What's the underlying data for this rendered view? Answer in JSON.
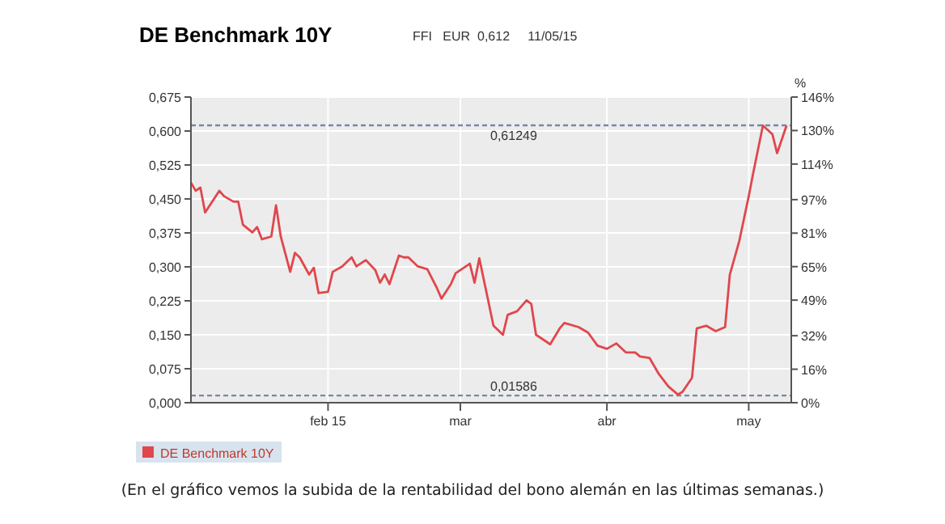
{
  "chart_data": {
    "type": "line",
    "title": "DE Benchmark 10Y",
    "subtitle": "FFI   EUR  0,612     11/05/15",
    "x": [
      "2015-01-03",
      "2015-01-04",
      "2015-01-05",
      "2015-01-06",
      "2015-01-09",
      "2015-01-10",
      "2015-01-12",
      "2015-01-13",
      "2015-01-14",
      "2015-01-16",
      "2015-01-17",
      "2015-01-18",
      "2015-01-20",
      "2015-01-21",
      "2015-01-22",
      "2015-01-24",
      "2015-01-25",
      "2015-01-26",
      "2015-01-28",
      "2015-01-29",
      "2015-01-30",
      "2015-02-01",
      "2015-02-02",
      "2015-02-04",
      "2015-02-06",
      "2015-02-07",
      "2015-02-09",
      "2015-02-11",
      "2015-02-12",
      "2015-02-13",
      "2015-02-14",
      "2015-02-16",
      "2015-02-17",
      "2015-02-18",
      "2015-02-20",
      "2015-02-22",
      "2015-02-24",
      "2015-02-25",
      "2015-02-27",
      "2015-02-28",
      "2015-03-03",
      "2015-03-04",
      "2015-03-05",
      "2015-03-08",
      "2015-03-10",
      "2015-03-11",
      "2015-03-13",
      "2015-03-15",
      "2015-03-16",
      "2015-03-17",
      "2015-03-20",
      "2015-03-22",
      "2015-03-23",
      "2015-03-26",
      "2015-03-28",
      "2015-03-30",
      "2015-04-01",
      "2015-04-03",
      "2015-04-05",
      "2015-04-07",
      "2015-04-08",
      "2015-04-10",
      "2015-04-12",
      "2015-04-14",
      "2015-04-16",
      "2015-04-17",
      "2015-04-19",
      "2015-04-20",
      "2015-04-22",
      "2015-04-24",
      "2015-04-26",
      "2015-04-27",
      "2015-04-29",
      "2015-05-01",
      "2015-05-02",
      "2015-05-04",
      "2015-05-06",
      "2015-05-07",
      "2015-05-09"
    ],
    "series": [
      {
        "name": "DE Benchmark 10Y",
        "color": "#e0474c",
        "values": [
          0.486,
          0.468,
          0.475,
          0.42,
          0.468,
          0.456,
          0.444,
          0.444,
          0.393,
          0.376,
          0.388,
          0.361,
          0.367,
          0.436,
          0.367,
          0.289,
          0.331,
          0.321,
          0.283,
          0.298,
          0.242,
          0.245,
          0.289,
          0.301,
          0.321,
          0.301,
          0.315,
          0.293,
          0.265,
          0.283,
          0.262,
          0.325,
          0.321,
          0.321,
          0.301,
          0.295,
          0.254,
          0.23,
          0.262,
          0.286,
          0.307,
          0.265,
          0.319,
          0.17,
          0.15,
          0.194,
          0.202,
          0.226,
          0.218,
          0.15,
          0.129,
          0.164,
          0.176,
          0.167,
          0.155,
          0.126,
          0.119,
          0.131,
          0.111,
          0.111,
          0.102,
          0.099,
          0.063,
          0.036,
          0.018,
          0.024,
          0.055,
          0.164,
          0.17,
          0.158,
          0.167,
          0.283,
          0.357,
          0.456,
          0.51,
          0.612,
          0.593,
          0.551,
          0.612
        ]
      }
    ],
    "xlim": [
      "2015-01-03",
      "2015-05-10"
    ],
    "xticks": [
      {
        "value": "2015-02-01",
        "label": "feb 15"
      },
      {
        "value": "2015-03-01",
        "label": "mar"
      },
      {
        "value": "2015-04-01",
        "label": "abr"
      },
      {
        "value": "2015-05-01",
        "label": "may"
      }
    ],
    "ylim": [
      0,
      0.675
    ],
    "yticks": [
      {
        "value": 0,
        "label": "0,000"
      },
      {
        "value": 0.075,
        "label": "0,075"
      },
      {
        "value": 0.15,
        "label": "0,150"
      },
      {
        "value": 0.225,
        "label": "0,225"
      },
      {
        "value": 0.3,
        "label": "0,300"
      },
      {
        "value": 0.375,
        "label": "0,375"
      },
      {
        "value": 0.45,
        "label": "0,450"
      },
      {
        "value": 0.525,
        "label": "0,525"
      },
      {
        "value": 0.6,
        "label": "0,600"
      },
      {
        "value": 0.675,
        "label": "0,675"
      }
    ],
    "y2label": "%",
    "y2lim": [
      0,
      146
    ],
    "y2ticks": [
      {
        "value": 0,
        "label": "0%"
      },
      {
        "value": 16,
        "label": "16%"
      },
      {
        "value": 32,
        "label": "32%"
      },
      {
        "value": 49,
        "label": "49%"
      },
      {
        "value": 65,
        "label": "65%"
      },
      {
        "value": 81,
        "label": "81%"
      },
      {
        "value": 97,
        "label": "97%"
      },
      {
        "value": 114,
        "label": "114%"
      },
      {
        "value": 130,
        "label": "130%"
      },
      {
        "value": 146,
        "label": "146%"
      }
    ],
    "ref_lines": [
      {
        "axis": "y",
        "value": 0.61249,
        "label": "0,61249",
        "color": "#7a86a8",
        "line_style": "dashed"
      },
      {
        "axis": "y",
        "value": 0.01586,
        "label": "0,01586",
        "color": "#7a86a8",
        "line_style": "dashed"
      }
    ],
    "grid": true,
    "legend": "bottom left",
    "marker": "none",
    "line_style": "solid",
    "annotations": [
      "(En el gráfico vemos la subida de la rentabilidad del bono alemán en las últimas semanas.)"
    ]
  }
}
